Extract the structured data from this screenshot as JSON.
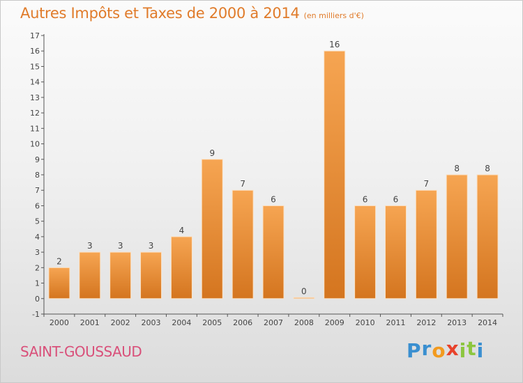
{
  "chart_data": {
    "type": "bar",
    "title": "Autres Impôts et Taxes de 2000 à 2014",
    "subtitle": "(en milliers d'€)",
    "categories": [
      "2000",
      "2001",
      "2002",
      "2003",
      "2004",
      "2005",
      "2006",
      "2007",
      "2008",
      "2009",
      "2010",
      "2011",
      "2012",
      "2013",
      "2014"
    ],
    "values": [
      2,
      3,
      3,
      3,
      4,
      9,
      7,
      6,
      0,
      16,
      6,
      6,
      7,
      8,
      8
    ],
    "ylim": [
      -1,
      17
    ],
    "yticks": [
      -1,
      0,
      1,
      2,
      3,
      4,
      5,
      6,
      7,
      8,
      9,
      10,
      11,
      12,
      13,
      14,
      15,
      16,
      17
    ],
    "grid": false,
    "bar_color_top": "#f6a552",
    "bar_color_bottom": "#d4751f"
  },
  "footer": {
    "commune": "SAINT-GOUSSAUD",
    "logo_text": "Proxiti",
    "logo_letters": [
      {
        "ch": "P",
        "color": "#3a8fd0"
      },
      {
        "ch": "r",
        "color": "#3a8fd0"
      },
      {
        "ch": "o",
        "color": "#f29a1e"
      },
      {
        "ch": "x",
        "color": "#e8422b"
      },
      {
        "ch": "i",
        "color": "#8cc63f"
      },
      {
        "ch": "t",
        "color": "#8cc63f"
      },
      {
        "ch": "i",
        "color": "#3a8fd0"
      }
    ]
  }
}
